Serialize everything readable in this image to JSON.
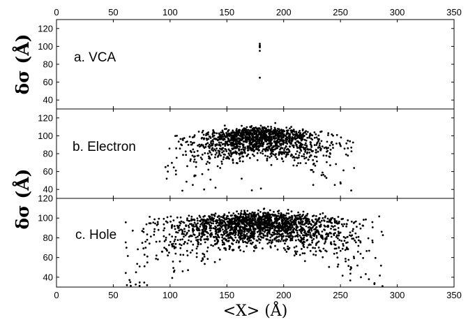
{
  "chart_data": [
    {
      "type": "scatter",
      "panel_label": "a. VCA",
      "ylabel": "δσ (Å)",
      "xlim": [
        0,
        350
      ],
      "ylim": [
        30,
        130
      ],
      "x_ticks": [
        "0",
        "50",
        "100",
        "150",
        "200",
        "250",
        "300",
        "350"
      ],
      "y_ticks": [
        "40",
        "60",
        "80",
        "100",
        "120"
      ],
      "x": [
        179,
        179,
        179,
        179,
        179,
        179
      ],
      "y": [
        103,
        101,
        100,
        99,
        95,
        65
      ]
    },
    {
      "type": "scatter",
      "panel_label": "b. Electron",
      "ylabel": "",
      "xlim": [
        0,
        350
      ],
      "ylim": [
        30,
        130
      ],
      "y_ticks": [
        "40",
        "60",
        "80",
        "100",
        "120"
      ],
      "cloud": {
        "center_x": 180,
        "spread_x": 32,
        "peak_y": 97,
        "min_y": 38,
        "x_range": [
          95,
          262
        ],
        "count": 1400
      },
      "x": [
        96,
        98,
        97,
        120,
        130,
        140,
        163,
        172,
        180,
        226,
        245,
        250,
        262
      ],
      "y": [
        65,
        60,
        52,
        45,
        40,
        42,
        52,
        39,
        41,
        45,
        45,
        48,
        64
      ]
    },
    {
      "type": "scatter",
      "panel_label": "c. Hole",
      "ylabel": "δσ (Å)",
      "xlabel": "<X> (Å)",
      "xlim": [
        0,
        350
      ],
      "ylim": [
        30,
        120
      ],
      "x_ticks": [
        "0",
        "50",
        "100",
        "150",
        "200",
        "250",
        "300",
        "350"
      ],
      "y_ticks": [
        "40",
        "60",
        "80",
        "100",
        "120"
      ],
      "cloud": {
        "center_x": 178,
        "spread_x": 44,
        "peak_y": 93,
        "min_y": 31,
        "x_range": [
          60,
          290
        ],
        "count": 2000
      },
      "x": [
        62,
        65,
        70,
        80,
        88,
        268,
        275,
        280,
        287
      ],
      "y": [
        32,
        35,
        45,
        55,
        62,
        40,
        38,
        34,
        31
      ]
    }
  ]
}
